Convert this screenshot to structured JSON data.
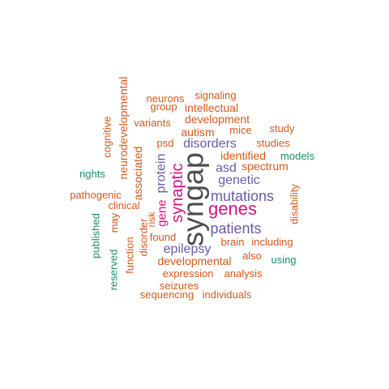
{
  "colors": {
    "gray": "#4d4d4d",
    "magenta": "#d6137e",
    "purple": "#6a5aa8",
    "orange": "#d4581c",
    "teal": "#1f8c6c"
  },
  "words": [
    {
      "text": "syngap",
      "color": "gray",
      "weight": 10
    },
    {
      "text": "genes",
      "color": "magenta",
      "weight": 8
    },
    {
      "text": "synaptic",
      "color": "magenta",
      "weight": 7
    },
    {
      "text": "mutations",
      "color": "purple",
      "weight": 6
    },
    {
      "text": "patients",
      "color": "purple",
      "weight": 6
    },
    {
      "text": "disorders",
      "color": "purple",
      "weight": 5
    },
    {
      "text": "genetic",
      "color": "purple",
      "weight": 5
    },
    {
      "text": "asd",
      "color": "purple",
      "weight": 5
    },
    {
      "text": "epilepsy",
      "color": "purple",
      "weight": 5
    },
    {
      "text": "protein",
      "color": "purple",
      "weight": 5
    },
    {
      "text": "gene",
      "color": "magenta",
      "weight": 4
    },
    {
      "text": "identified",
      "color": "orange",
      "weight": 4
    },
    {
      "text": "spectrum",
      "color": "orange",
      "weight": 4
    },
    {
      "text": "autism",
      "color": "orange",
      "weight": 4
    },
    {
      "text": "development",
      "color": "orange",
      "weight": 4
    },
    {
      "text": "intellectual",
      "color": "orange",
      "weight": 4
    },
    {
      "text": "developmental",
      "color": "orange",
      "weight": 4
    },
    {
      "text": "neurodevelopmental",
      "color": "orange",
      "weight": 4
    },
    {
      "text": "associated",
      "color": "orange",
      "weight": 4
    },
    {
      "text": "neurons",
      "color": "orange",
      "weight": 3
    },
    {
      "text": "signaling",
      "color": "orange",
      "weight": 3
    },
    {
      "text": "group",
      "color": "orange",
      "weight": 3
    },
    {
      "text": "variants",
      "color": "orange",
      "weight": 3
    },
    {
      "text": "mice",
      "color": "orange",
      "weight": 3
    },
    {
      "text": "study",
      "color": "orange",
      "weight": 3
    },
    {
      "text": "psd",
      "color": "orange",
      "weight": 3
    },
    {
      "text": "studies",
      "color": "orange",
      "weight": 3
    },
    {
      "text": "cognitive",
      "color": "orange",
      "weight": 3
    },
    {
      "text": "clinical",
      "color": "orange",
      "weight": 3
    },
    {
      "text": "pathogenic",
      "color": "orange",
      "weight": 3
    },
    {
      "text": "may",
      "color": "orange",
      "weight": 3
    },
    {
      "text": "risk",
      "color": "orange",
      "weight": 3
    },
    {
      "text": "found",
      "color": "orange",
      "weight": 3
    },
    {
      "text": "brain",
      "color": "orange",
      "weight": 3
    },
    {
      "text": "including",
      "color": "orange",
      "weight": 3
    },
    {
      "text": "disability",
      "color": "orange",
      "weight": 3
    },
    {
      "text": "function",
      "color": "orange",
      "weight": 3
    },
    {
      "text": "disorder",
      "color": "orange",
      "weight": 3
    },
    {
      "text": "also",
      "color": "orange",
      "weight": 3
    },
    {
      "text": "expression",
      "color": "orange",
      "weight": 3
    },
    {
      "text": "analysis",
      "color": "orange",
      "weight": 3
    },
    {
      "text": "seizures",
      "color": "orange",
      "weight": 3
    },
    {
      "text": "sequencing",
      "color": "orange",
      "weight": 3
    },
    {
      "text": "individuals",
      "color": "orange",
      "weight": 3
    },
    {
      "text": "models",
      "color": "teal",
      "weight": 2
    },
    {
      "text": "rights",
      "color": "teal",
      "weight": 2
    },
    {
      "text": "published",
      "color": "teal",
      "weight": 2
    },
    {
      "text": "reserved",
      "color": "teal",
      "weight": 2
    },
    {
      "text": "using",
      "color": "teal",
      "weight": 2
    }
  ]
}
